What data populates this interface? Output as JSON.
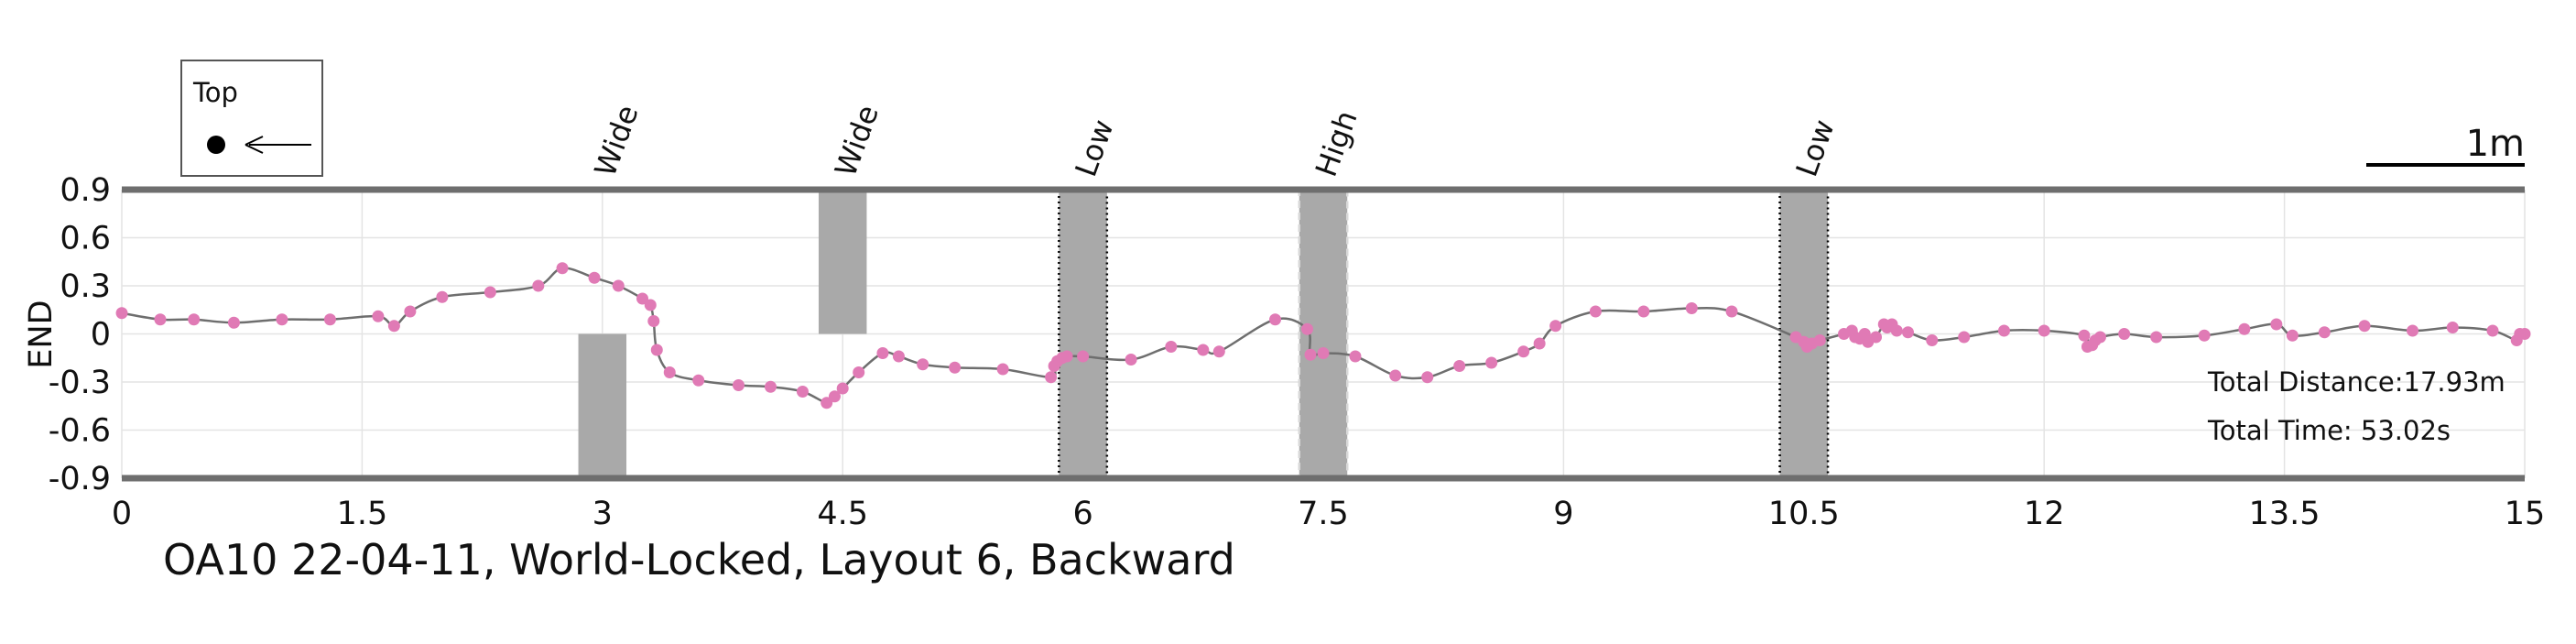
{
  "chart_data": {
    "type": "line",
    "title": "OA10 22-04-11, World-Locked, Layout 6, Backward",
    "xlabel": "",
    "ylabel": "END",
    "xlim": [
      0,
      15
    ],
    "ylim": [
      -0.9,
      0.9
    ],
    "xticks": [
      "0",
      "1.5",
      "3",
      "4.5",
      "6",
      "7.5",
      "9",
      "10.5",
      "12",
      "13.5",
      "15"
    ],
    "yticks": [
      "0.9",
      "0.6",
      "0.3",
      "0",
      "-0.3",
      "-0.6",
      "-0.9"
    ],
    "grid": true,
    "legend": {
      "title": "Top",
      "placement": "top-left"
    },
    "scale_bar": {
      "label": "1m"
    },
    "colors": {
      "line": "#6e6e6e",
      "markers": "#e07ab5",
      "obstacle": "#a9a9a9",
      "frame": "#6e6e6e"
    },
    "info": {
      "total_distance": "Total Distance:17.93m",
      "total_time": "Total Time: 53.02s"
    },
    "obstacles": [
      {
        "label": "Wide",
        "x": [
          2.85,
          3.15
        ],
        "y": [
          -0.9,
          0.0
        ],
        "style": "solid"
      },
      {
        "label": "Wide",
        "x": [
          4.35,
          4.65
        ],
        "y": [
          0.0,
          0.9
        ],
        "style": "solid"
      },
      {
        "label": "Low",
        "x": [
          5.85,
          6.15
        ],
        "y": [
          -0.9,
          0.9
        ],
        "style": "dotted"
      },
      {
        "label": "High",
        "x": [
          7.35,
          7.65
        ],
        "y": [
          -0.9,
          0.9
        ],
        "style": "dashed"
      },
      {
        "label": "Low",
        "x": [
          10.35,
          10.65
        ],
        "y": [
          -0.9,
          0.9
        ],
        "style": "dotted"
      }
    ],
    "series": [
      {
        "x": [
          0,
          0.24,
          0.45,
          0.7,
          1.0,
          1.3,
          1.6,
          1.7,
          1.8,
          2.0,
          2.3,
          2.6,
          2.75,
          2.95,
          3.1,
          3.25,
          3.3,
          3.32,
          3.34,
          3.42,
          3.6,
          3.85,
          4.05,
          4.25,
          4.4,
          4.45,
          4.5,
          4.6,
          4.75,
          4.85,
          5.0,
          5.2,
          5.5,
          5.8,
          5.82,
          5.84,
          5.87,
          5.9,
          6.0,
          6.3,
          6.55,
          6.75,
          6.85,
          7.2,
          7.4,
          7.42,
          7.5,
          7.7,
          7.95,
          8.15,
          8.35,
          8.55,
          8.75,
          8.85,
          8.95,
          9.2,
          9.5,
          9.8,
          10.05,
          10.45,
          10.5,
          10.52,
          10.55,
          10.6,
          10.75,
          10.8,
          10.82,
          10.85,
          10.88,
          10.9,
          10.95,
          11.0,
          11.02,
          11.05,
          11.08,
          11.15,
          11.3,
          11.5,
          11.75,
          12.0,
          12.25,
          12.27,
          12.3,
          12.32,
          12.35,
          12.5,
          12.7,
          13.0,
          13.25,
          13.45,
          13.55,
          13.75,
          14.0,
          14.3,
          14.55,
          14.8,
          14.95,
          14.97,
          15.0
        ],
        "y": [
          0.13,
          0.09,
          0.09,
          0.07,
          0.09,
          0.09,
          0.11,
          0.05,
          0.14,
          0.23,
          0.26,
          0.3,
          0.41,
          0.35,
          0.3,
          0.22,
          0.18,
          0.08,
          -0.1,
          -0.24,
          -0.29,
          -0.32,
          -0.33,
          -0.36,
          -0.43,
          -0.39,
          -0.34,
          -0.24,
          -0.12,
          -0.14,
          -0.19,
          -0.21,
          -0.22,
          -0.27,
          -0.2,
          -0.17,
          -0.15,
          -0.14,
          -0.14,
          -0.16,
          -0.08,
          -0.1,
          -0.11,
          0.09,
          0.03,
          -0.13,
          -0.12,
          -0.14,
          -0.26,
          -0.27,
          -0.2,
          -0.18,
          -0.11,
          -0.06,
          0.05,
          0.14,
          0.14,
          0.16,
          0.14,
          -0.02,
          -0.05,
          -0.08,
          -0.06,
          -0.04,
          0.0,
          0.02,
          -0.02,
          -0.03,
          0.0,
          -0.05,
          -0.02,
          0.06,
          0.04,
          0.06,
          0.02,
          0.01,
          -0.04,
          -0.02,
          0.02,
          0.02,
          -0.01,
          -0.08,
          -0.07,
          -0.04,
          -0.02,
          0.0,
          -0.02,
          -0.01,
          0.03,
          0.06,
          -0.01,
          0.01,
          0.05,
          0.02,
          0.04,
          0.02,
          -0.04,
          0.0,
          0.0
        ]
      }
    ]
  }
}
